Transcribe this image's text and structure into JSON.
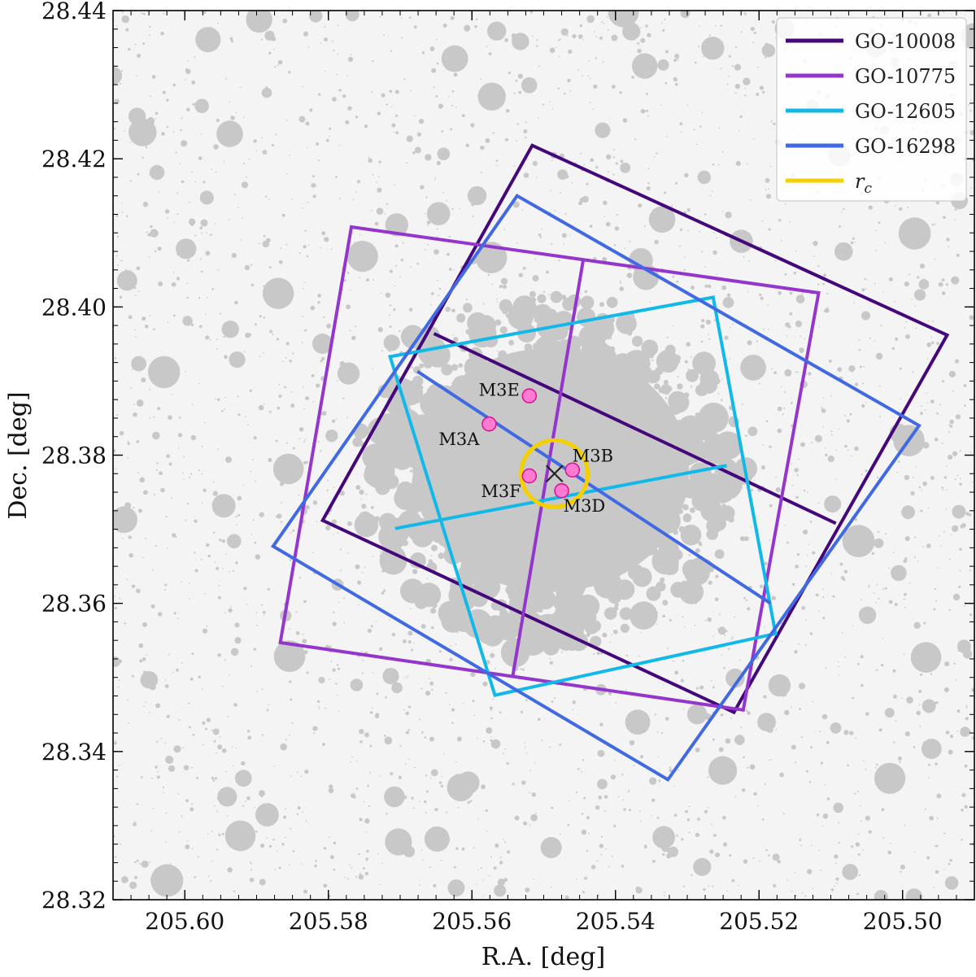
{
  "chart_data": {
    "type": "scatter",
    "xlabel": "R.A. [deg]",
    "ylabel": "Dec. [deg]",
    "xlim": [
      205.61,
      205.49
    ],
    "ylim": [
      28.32,
      28.44
    ],
    "x_inverted": true,
    "x_ticks": [
      205.6,
      205.58,
      205.56,
      205.54,
      205.52,
      205.5
    ],
    "x_tick_labels": [
      "205.60",
      "205.58",
      "205.56",
      "205.54",
      "205.52",
      "205.50"
    ],
    "y_ticks": [
      28.32,
      28.34,
      28.36,
      28.38,
      28.4,
      28.42,
      28.44
    ],
    "y_tick_labels": [
      "28.32",
      "28.34",
      "28.36",
      "28.38",
      "28.40",
      "28.42",
      "28.44"
    ],
    "grid": false,
    "legend_position": "top-right",
    "background_stars": {
      "color": "#c8c8c8",
      "description_in_picture": "field stars drawn as grey discs sized by brightness, dense cluster core near the centre"
    },
    "center_marker": {
      "symbol": "x",
      "ra": 205.5485,
      "dec": 28.3775,
      "color": "#222222"
    },
    "core_radius": {
      "label": "r_c",
      "ra": 205.5485,
      "dec": 28.3775,
      "radius_deg": 0.0045,
      "color": "#f5d000"
    },
    "series": [
      {
        "name": "GO-10008",
        "color": "#45087a",
        "polygons": [
          [
            [
              205.5516,
              28.4218
            ],
            [
              205.4938,
              28.3962
            ],
            [
              205.5235,
              28.3453
            ],
            [
              205.5808,
              28.3712
            ]
          ],
          [
            [
              205.5653,
              28.3964
            ],
            [
              205.5093,
              28.3708
            ]
          ]
        ]
      },
      {
        "name": "GO-10775",
        "color": "#9435cc",
        "polygons": [
          [
            [
              205.5768,
              28.4108
            ],
            [
              205.5117,
              28.4019
            ],
            [
              205.5222,
              28.3456
            ],
            [
              205.5867,
              28.3547
            ]
          ],
          [
            [
              205.5445,
              28.4063
            ],
            [
              205.5543,
              28.3503
            ]
          ]
        ]
      },
      {
        "name": "GO-12605",
        "color": "#12b9e8",
        "polygons": [
          [
            [
              205.5714,
              28.3933
            ],
            [
              205.5264,
              28.4013
            ],
            [
              205.5177,
              28.3559
            ],
            [
              205.5568,
              28.3476
            ]
          ],
          [
            [
              205.5707,
              28.3701
            ],
            [
              205.5245,
              28.3786
            ]
          ]
        ]
      },
      {
        "name": "GO-16298",
        "color": "#4169e1",
        "polygons": [
          [
            [
              205.5537,
              28.415
            ],
            [
              205.4977,
              28.384
            ],
            [
              205.5327,
              28.3362
            ],
            [
              205.5877,
              28.3677
            ]
          ],
          [
            [
              205.5676,
              28.3913
            ],
            [
              205.5184,
              28.36
            ]
          ]
        ]
      }
    ],
    "labeled_points": [
      {
        "label": "M3E",
        "ra": 205.552,
        "dec": 28.388
      },
      {
        "label": "M3A",
        "ra": 205.5576,
        "dec": 28.3842
      },
      {
        "label": "M3B",
        "ra": 205.546,
        "dec": 28.378
      },
      {
        "label": "M3F",
        "ra": 205.552,
        "dec": 28.3772
      },
      {
        "label": "M3D",
        "ra": 205.5475,
        "dec": 28.3752
      }
    ],
    "point_style": {
      "fill": "#ff7ad0",
      "stroke": "#d6118f"
    },
    "legend": [
      {
        "label": "GO-10008",
        "color": "#45087a"
      },
      {
        "label": "GO-10775",
        "color": "#9435cc"
      },
      {
        "label": "GO-12605",
        "color": "#12b9e8"
      },
      {
        "label": "GO-16298",
        "color": "#4169e1"
      },
      {
        "label": "r",
        "sub": "c",
        "color": "#f5d000"
      }
    ]
  }
}
